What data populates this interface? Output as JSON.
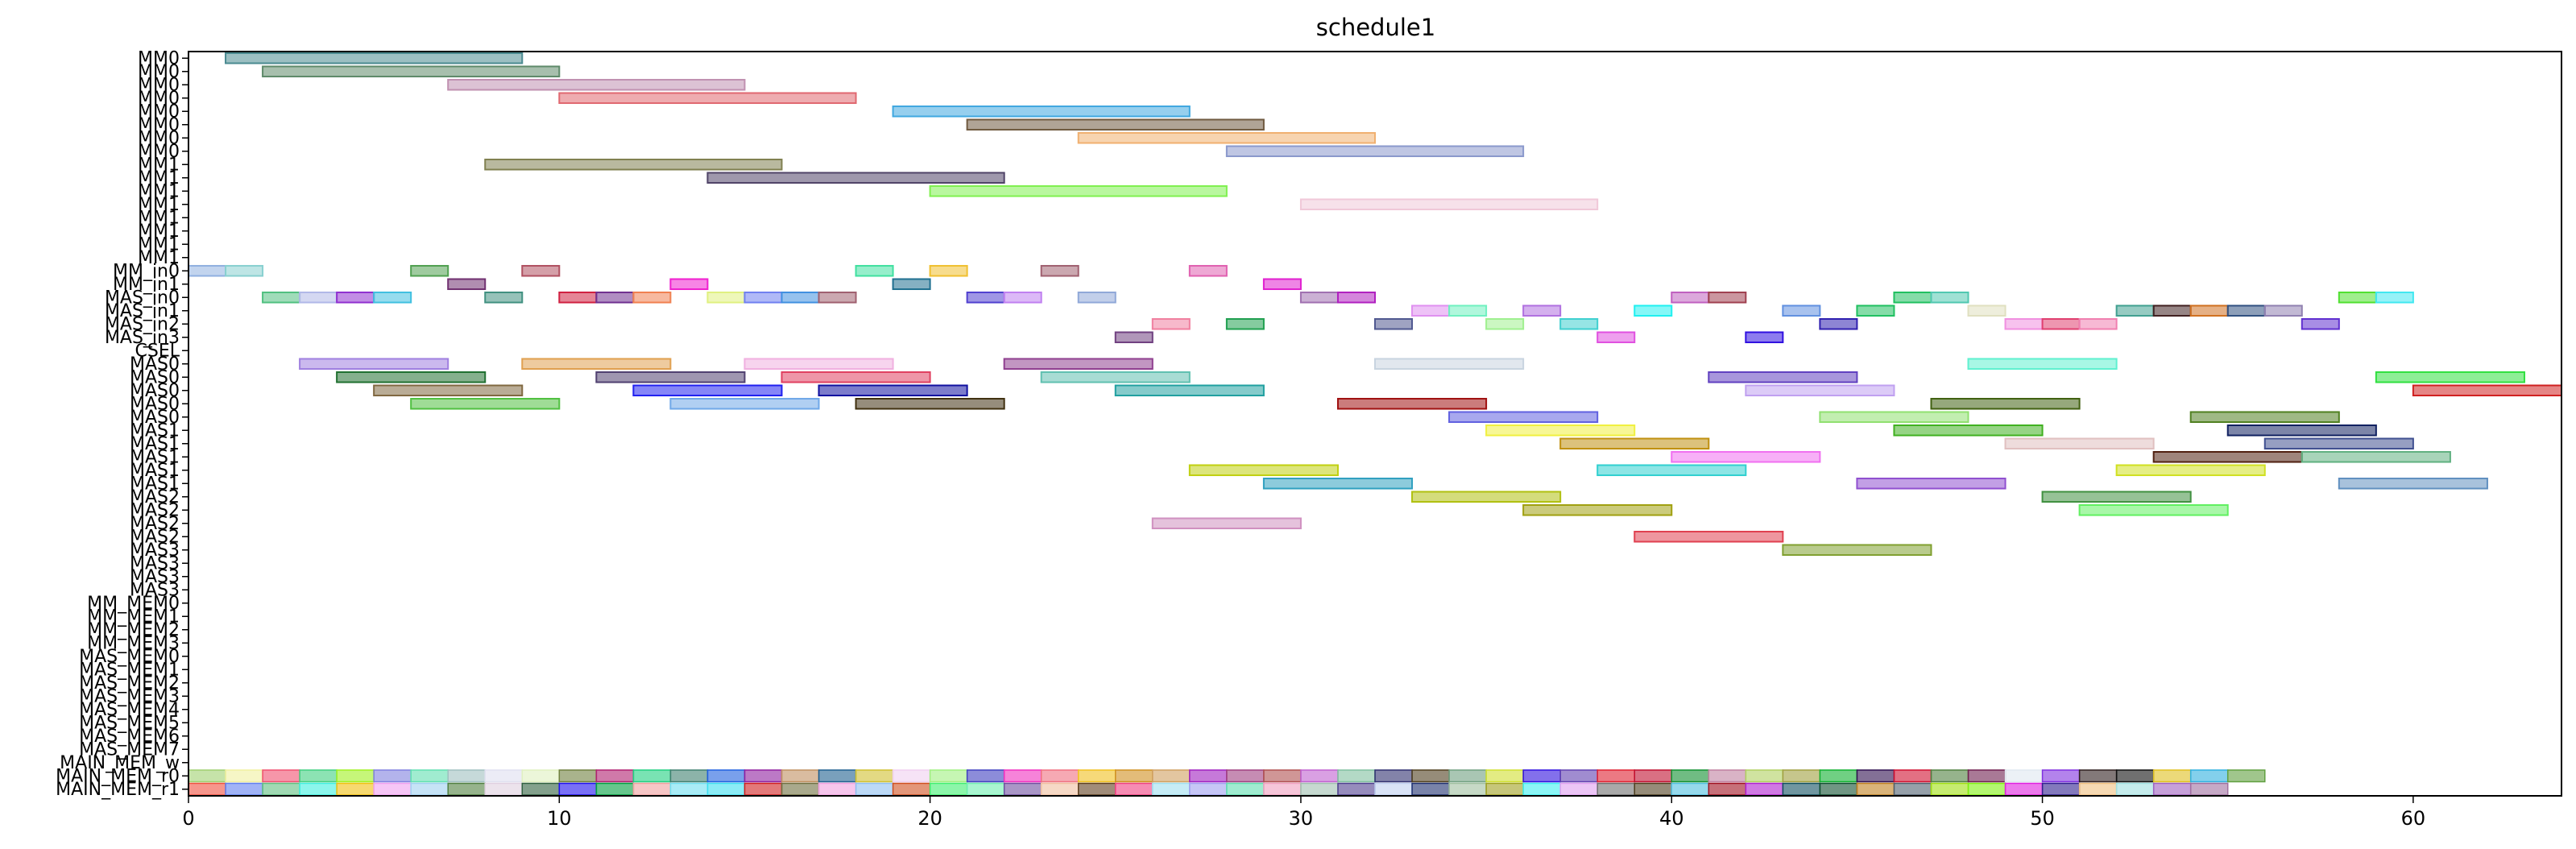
{
  "chart_data": {
    "type": "gantt",
    "title": "schedule1",
    "xlim": [
      0,
      64
    ],
    "x_ticks": [
      0,
      10,
      20,
      30,
      40,
      50,
      60
    ],
    "rows": [
      "MM0",
      "MM0",
      "MM0",
      "MM0",
      "MM0",
      "MM0",
      "MM0",
      "MM0",
      "MM1",
      "MM1",
      "MM1",
      "MM1",
      "MM1",
      "MM1",
      "MM1",
      "MM1",
      "MM_in0",
      "MM_in1",
      "MAS_in0",
      "MAS_in1",
      "MAS_in2",
      "MAS_in3",
      "CSEL",
      "MAS0",
      "MAS0",
      "MAS0",
      "MAS0",
      "MAS0",
      "MAS1",
      "MAS1",
      "MAS1",
      "MAS1",
      "MAS1",
      "MAS2",
      "MAS2",
      "MAS2",
      "MAS2",
      "MAS3",
      "MAS3",
      "MAS3",
      "MAS3",
      "MM_MEM0",
      "MM_MEM1",
      "MM_MEM2",
      "MM_MEM3",
      "MAS_MEM0",
      "MAS_MEM1",
      "MAS_MEM2",
      "MAS_MEM3",
      "MAS_MEM4",
      "MAS_MEM5",
      "MAS_MEM6",
      "MAS_MEM7",
      "MAIN_MEM_w",
      "MAIN_MEM_r0",
      "MAIN_MEM_r1"
    ],
    "bars": [
      {
        "row": 0,
        "start": 1,
        "end": 9,
        "color": "#4a8a90"
      },
      {
        "row": 1,
        "start": 2,
        "end": 10,
        "color": "#5e8a6a"
      },
      {
        "row": 2,
        "start": 7,
        "end": 15,
        "color": "#c090b0"
      },
      {
        "row": 3,
        "start": 10,
        "end": 18,
        "color": "#e06870"
      },
      {
        "row": 4,
        "start": 19,
        "end": 27,
        "color": "#40a8e0"
      },
      {
        "row": 5,
        "start": 21,
        "end": 29,
        "color": "#705a40"
      },
      {
        "row": 6,
        "start": 24,
        "end": 32,
        "color": "#f0b070"
      },
      {
        "row": 7,
        "start": 28,
        "end": 36,
        "color": "#8a98cc"
      },
      {
        "row": 8,
        "start": 8,
        "end": 16,
        "color": "#808050"
      },
      {
        "row": 9,
        "start": 14,
        "end": 22,
        "color": "#504468"
      },
      {
        "row": 10,
        "start": 20,
        "end": 28,
        "color": "#80f050"
      },
      {
        "row": 11,
        "start": 30,
        "end": 38,
        "color": "#f0c8d8"
      },
      {
        "row": 16,
        "start": 0,
        "end": 1,
        "color": "#90b0e0"
      },
      {
        "row": 16,
        "start": 1,
        "end": 2,
        "color": "#88d0d0"
      },
      {
        "row": 16,
        "start": 6,
        "end": 7,
        "color": "#50a050"
      },
      {
        "row": 16,
        "start": 9,
        "end": 10,
        "color": "#b05060"
      },
      {
        "row": 16,
        "start": 18,
        "end": 19,
        "color": "#40e0a0"
      },
      {
        "row": 16,
        "start": 20,
        "end": 21,
        "color": "#f0c030"
      },
      {
        "row": 16,
        "start": 23,
        "end": 24,
        "color": "#a06070"
      },
      {
        "row": 16,
        "start": 27,
        "end": 28,
        "color": "#e060b0"
      },
      {
        "row": 17,
        "start": 7,
        "end": 8,
        "color": "#703070"
      },
      {
        "row": 17,
        "start": 13,
        "end": 14,
        "color": "#f020d0"
      },
      {
        "row": 17,
        "start": 19,
        "end": 20,
        "color": "#207090"
      },
      {
        "row": 17,
        "start": 29,
        "end": 30,
        "color": "#e020d0"
      },
      {
        "row": 18,
        "start": 2,
        "end": 3,
        "color": "#50c080"
      },
      {
        "row": 18,
        "start": 3,
        "end": 4,
        "color": "#b0b8e8"
      },
      {
        "row": 18,
        "start": 4,
        "end": 5,
        "color": "#9030d0"
      },
      {
        "row": 18,
        "start": 5,
        "end": 6,
        "color": "#40c0e0"
      },
      {
        "row": 18,
        "start": 8,
        "end": 9,
        "color": "#409080"
      },
      {
        "row": 18,
        "start": 10,
        "end": 11,
        "color": "#d02040"
      },
      {
        "row": 18,
        "start": 11,
        "end": 12,
        "color": "#703090"
      },
      {
        "row": 18,
        "start": 12,
        "end": 13,
        "color": "#f08050"
      },
      {
        "row": 18,
        "start": 14,
        "end": 15,
        "color": "#e0f080"
      },
      {
        "row": 18,
        "start": 15,
        "end": 16,
        "color": "#7080f0"
      },
      {
        "row": 18,
        "start": 16,
        "end": 17,
        "color": "#4090e0"
      },
      {
        "row": 18,
        "start": 17,
        "end": 18,
        "color": "#a06070"
      },
      {
        "row": 18,
        "start": 21,
        "end": 22,
        "color": "#5040d0"
      },
      {
        "row": 18,
        "start": 22,
        "end": 23,
        "color": "#c080f0"
      },
      {
        "row": 18,
        "start": 24,
        "end": 25,
        "color": "#90a8d8"
      },
      {
        "row": 18,
        "start": 30,
        "end": 31,
        "color": "#a070b0"
      },
      {
        "row": 18,
        "start": 31,
        "end": 32,
        "color": "#b020c0"
      },
      {
        "row": 18,
        "start": 40,
        "end": 41,
        "color": "#c060c0"
      },
      {
        "row": 18,
        "start": 41,
        "end": 42,
        "color": "#a04050"
      },
      {
        "row": 18,
        "start": 46,
        "end": 47,
        "color": "#20c060"
      },
      {
        "row": 18,
        "start": 47,
        "end": 48,
        "color": "#50c8b0"
      },
      {
        "row": 18,
        "start": 58,
        "end": 59,
        "color": "#50e030"
      },
      {
        "row": 18,
        "start": 59,
        "end": 60,
        "color": "#40e8f0"
      },
      {
        "row": 19,
        "start": 33,
        "end": 34,
        "color": "#e090f0"
      },
      {
        "row": 19,
        "start": 34,
        "end": 35,
        "color": "#70f0c0"
      },
      {
        "row": 19,
        "start": 36,
        "end": 37,
        "color": "#b070e0"
      },
      {
        "row": 19,
        "start": 39,
        "end": 40,
        "color": "#20f0f0"
      },
      {
        "row": 19,
        "start": 43,
        "end": 44,
        "color": "#6090e0"
      },
      {
        "row": 19,
        "start": 45,
        "end": 46,
        "color": "#20c060"
      },
      {
        "row": 19,
        "start": 48,
        "end": 49,
        "color": "#e0e0c0"
      },
      {
        "row": 19,
        "start": 52,
        "end": 53,
        "color": "#40a090"
      },
      {
        "row": 19,
        "start": 53,
        "end": 54,
        "color": "#402020"
      },
      {
        "row": 19,
        "start": 54,
        "end": 55,
        "color": "#d07020"
      },
      {
        "row": 19,
        "start": 55,
        "end": 56,
        "color": "#305080"
      },
      {
        "row": 19,
        "start": 56,
        "end": 57,
        "color": "#9080b0"
      },
      {
        "row": 20,
        "start": 26,
        "end": 27,
        "color": "#f080a0"
      },
      {
        "row": 20,
        "start": 28,
        "end": 29,
        "color": "#20a050"
      },
      {
        "row": 20,
        "start": 32,
        "end": 33,
        "color": "#505890"
      },
      {
        "row": 20,
        "start": 35,
        "end": 36,
        "color": "#a0f090"
      },
      {
        "row": 20,
        "start": 37,
        "end": 38,
        "color": "#40d0d0"
      },
      {
        "row": 20,
        "start": 44,
        "end": 45,
        "color": "#3020b0"
      },
      {
        "row": 20,
        "start": 49,
        "end": 50,
        "color": "#f090e0"
      },
      {
        "row": 20,
        "start": 50,
        "end": 51,
        "color": "#e04070"
      },
      {
        "row": 20,
        "start": 51,
        "end": 52,
        "color": "#f080b0"
      },
      {
        "row": 20,
        "start": 57,
        "end": 58,
        "color": "#6030d0"
      },
      {
        "row": 21,
        "start": 25,
        "end": 26,
        "color": "#704080"
      },
      {
        "row": 21,
        "start": 38,
        "end": 39,
        "color": "#e050e0"
      },
      {
        "row": 21,
        "start": 42,
        "end": 43,
        "color": "#3010e0"
      },
      {
        "row": 23,
        "start": 3,
        "end": 7,
        "color": "#a080e0"
      },
      {
        "row": 23,
        "start": 9,
        "end": 13,
        "color": "#e0a050"
      },
      {
        "row": 23,
        "start": 15,
        "end": 19,
        "color": "#f0b0e0"
      },
      {
        "row": 23,
        "start": 22,
        "end": 26,
        "color": "#904090"
      },
      {
        "row": 23,
        "start": 32,
        "end": 36,
        "color": "#c8d4e0"
      },
      {
        "row": 23,
        "start": 48,
        "end": 52,
        "color": "#60f0d0"
      },
      {
        "row": 24,
        "start": 4,
        "end": 8,
        "color": "#207030"
      },
      {
        "row": 24,
        "start": 11,
        "end": 15,
        "color": "#504070"
      },
      {
        "row": 24,
        "start": 16,
        "end": 20,
        "color": "#e04060"
      },
      {
        "row": 24,
        "start": 23,
        "end": 27,
        "color": "#60c0b0"
      },
      {
        "row": 24,
        "start": 41,
        "end": 45,
        "color": "#6040c0"
      },
      {
        "row": 24,
        "start": 59,
        "end": 63,
        "color": "#30e040"
      },
      {
        "row": 25,
        "start": 5,
        "end": 9,
        "color": "#806840"
      },
      {
        "row": 25,
        "start": 12,
        "end": 16,
        "color": "#2020f0"
      },
      {
        "row": 25,
        "start": 17,
        "end": 21,
        "color": "#1010a0"
      },
      {
        "row": 25,
        "start": 25,
        "end": 29,
        "color": "#20a0a0"
      },
      {
        "row": 25,
        "start": 42,
        "end": 46,
        "color": "#c0a0f0"
      },
      {
        "row": 25,
        "start": 60,
        "end": 64,
        "color": "#d02020"
      },
      {
        "row": 26,
        "start": 6,
        "end": 10,
        "color": "#50c040"
      },
      {
        "row": 26,
        "start": 13,
        "end": 17,
        "color": "#70a8e8"
      },
      {
        "row": 26,
        "start": 18,
        "end": 22,
        "color": "#403010"
      },
      {
        "row": 26,
        "start": 31,
        "end": 35,
        "color": "#a01010"
      },
      {
        "row": 26,
        "start": 47,
        "end": 51,
        "color": "#406010"
      },
      {
        "row": 27,
        "start": 34,
        "end": 38,
        "color": "#6060e0"
      },
      {
        "row": 27,
        "start": 44,
        "end": 48,
        "color": "#90e070"
      },
      {
        "row": 27,
        "start": 54,
        "end": 58,
        "color": "#508020"
      },
      {
        "row": 28,
        "start": 35,
        "end": 39,
        "color": "#f0f040"
      },
      {
        "row": 28,
        "start": 46,
        "end": 50,
        "color": "#40b020"
      },
      {
        "row": 28,
        "start": 55,
        "end": 59,
        "color": "#102060"
      },
      {
        "row": 29,
        "start": 37,
        "end": 41,
        "color": "#c09010"
      },
      {
        "row": 29,
        "start": 49,
        "end": 53,
        "color": "#e0c0c0"
      },
      {
        "row": 29,
        "start": 56,
        "end": 60,
        "color": "#405090"
      },
      {
        "row": 30,
        "start": 40,
        "end": 44,
        "color": "#f070f0"
      },
      {
        "row": 30,
        "start": 53,
        "end": 57,
        "color": "#502010"
      },
      {
        "row": 30,
        "start": 57,
        "end": 61,
        "color": "#60b080"
      },
      {
        "row": 31,
        "start": 27,
        "end": 31,
        "color": "#c0d010"
      },
      {
        "row": 31,
        "start": 38,
        "end": 42,
        "color": "#30d0d0"
      },
      {
        "row": 31,
        "start": 52,
        "end": 56,
        "color": "#d0e020"
      },
      {
        "row": 32,
        "start": 29,
        "end": 33,
        "color": "#30a0c0"
      },
      {
        "row": 32,
        "start": 45,
        "end": 49,
        "color": "#9050d0"
      },
      {
        "row": 32,
        "start": 58,
        "end": 62,
        "color": "#6090c0"
      },
      {
        "row": 33,
        "start": 33,
        "end": 37,
        "color": "#b0c010"
      },
      {
        "row": 33,
        "start": 50,
        "end": 54,
        "color": "#409040"
      },
      {
        "row": 34,
        "start": 36,
        "end": 40,
        "color": "#a0a010"
      },
      {
        "row": 34,
        "start": 51,
        "end": 55,
        "color": "#60f060"
      },
      {
        "row": 35,
        "start": 26,
        "end": 30,
        "color": "#d090c0"
      },
      {
        "row": 36,
        "start": 39,
        "end": 43,
        "color": "#e04050"
      },
      {
        "row": 37,
        "start": 43,
        "end": 47,
        "color": "#80a030"
      }
    ],
    "mem_rows": {
      "MAIN_MEM_r0": [
        "#a0d070",
        "#f0f0a0",
        "#f05070",
        "#40d080",
        "#a0f020",
        "#8080e0",
        "#60e0b0",
        "#a0c0c0",
        "#e0e0f0",
        "#e0f0c0",
        "#708040",
        "#b02070",
        "#20d080",
        "#408070",
        "#2060e0",
        "#9020a0",
        "#c09060",
        "#206090",
        "#d0c030",
        "#f0d0f0",
        "#a0f080",
        "#4040c0",
        "#f030c0",
        "#f07080",
        "#f0c020",
        "#d09020",
        "#d0a060",
        "#a020c0",
        "#a04080",
        "#b05050",
        "#c060d0",
        "#80c0a0",
        "#303070",
        "#504020",
        "#70a080",
        "#d0e030",
        "#3010e0",
        "#6040b0",
        "#e02030",
        "#c01030",
        "#109030",
        "#c080a0",
        "#b0d060",
        "#a0a040",
        "#10b030",
        "#301050",
        "#d01030",
        "#508040",
        "#702050",
        "#e0e8f0",
        "#8030e0",
        "#302020",
        "#101010",
        "#e0c020",
        "#30b0e0",
        "#60a040"
      ],
      "MAIN_MEM_r1": [
        "#f05040",
        "#6080f0",
        "#60c080",
        "#40f0e0",
        "#f0c010",
        "#f0a0f0",
        "#a0d0f0",
        "#508040",
        "#e0d0e0",
        "#306040",
        "#2010f0",
        "#00a040",
        "#f0a0a0",
        "#70e0f0",
        "#40e0f0",
        "#d02020",
        "#707040",
        "#f0a0e0",
        "#90c0f0",
        "#d05020",
        "#40f070",
        "#70f0b0",
        "#7050a0",
        "#f0c0a0",
        "#604020",
        "#f04080",
        "#a0e0f0",
        "#a0a0f0",
        "#60e0b0",
        "#f0a0c0",
        "#a0c0b0",
        "#504090",
        "#c0d0f0",
        "#203070",
        "#a0c0a0",
        "#a0a020",
        "#40f0f0",
        "#e0a0f0",
        "#707070",
        "#504020",
        "#50c0e0",
        "#a01020",
        "#b020d0",
        "#105060",
        "#105030",
        "#c08020",
        "#506070",
        "#a0e010",
        "#80f010",
        "#e020e0",
        "#302090",
        "#f0c080",
        "#a0e0e0",
        "#a060c0",
        "#a070a0"
      ]
    }
  }
}
